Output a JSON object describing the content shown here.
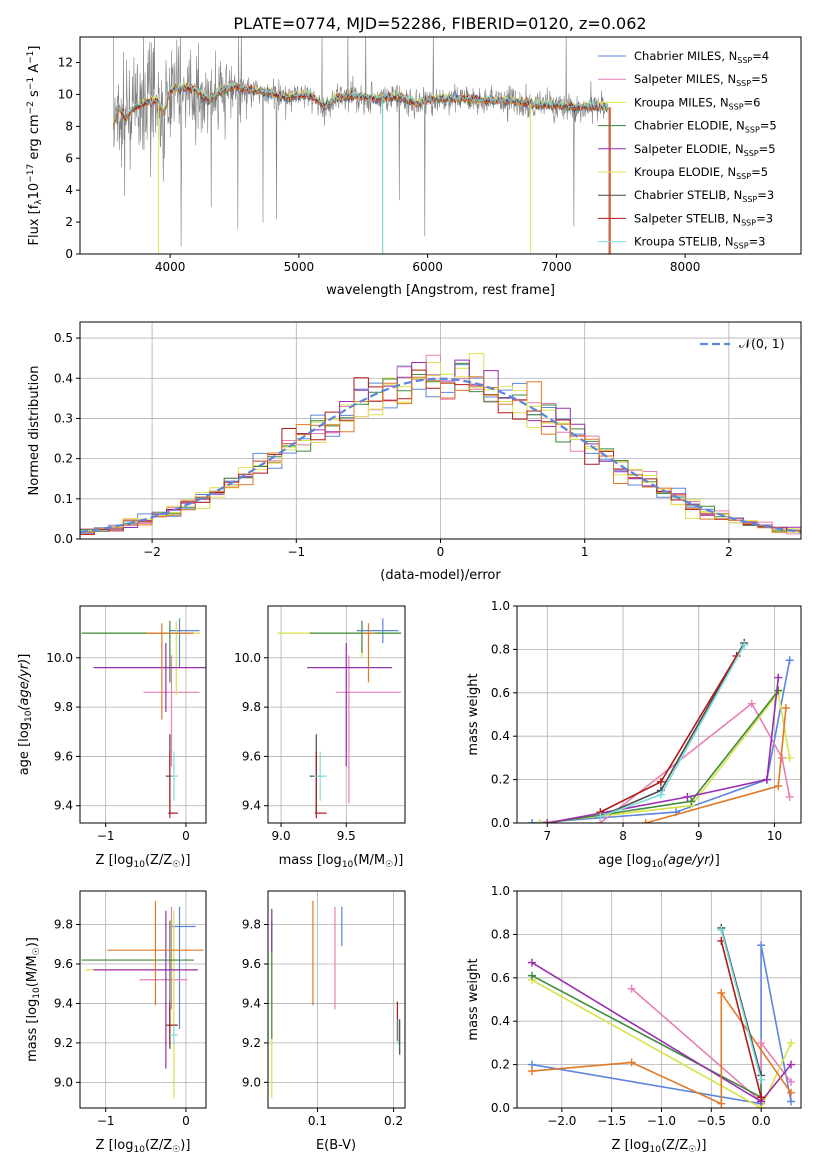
{
  "figure": {
    "title": "PLATE=0774, MJD=52286, FIBERID=0120, z=0.062"
  },
  "colors": {
    "chabrier_miles": "#5b86dc",
    "salpeter_miles": "#e87fb8",
    "kroupa_miles": "#d8e24a",
    "chabrier_elodie": "#3d8a3d",
    "salpeter_elodie": "#9a2eb0",
    "kroupa_elodie": "#e2e25a",
    "chabrier_stelib": "#4a4a4a",
    "salpeter_stelib": "#b01a1a",
    "kroupa_stelib": "#7fdcdc",
    "orange": "#e07a28",
    "data": "#808080"
  },
  "chart_data": [
    {
      "id": "spectrum",
      "type": "line",
      "xlabel": "wavelength [Angstrom, rest frame]",
      "ylabel": "Flux [f",
      "xlim": [
        3300,
        8900
      ],
      "ylim": [
        0,
        13.6
      ],
      "xticks": [
        4000,
        5000,
        6000,
        7000,
        8000
      ],
      "yticks": [
        0,
        2,
        4,
        6,
        8,
        10,
        12
      ],
      "legend_position": "upper right",
      "legend": [
        {
          "pre": "Chabrier MILES, N",
          "n": 4,
          "color": "#5b86dc"
        },
        {
          "pre": "Salpeter MILES, N",
          "n": 5,
          "color": "#e87fb8"
        },
        {
          "pre": "Kroupa MILES, N",
          "n": 6,
          "color": "#d8e24a"
        },
        {
          "pre": "Chabrier ELODIE, N",
          "n": 5,
          "color": "#3d8a3d"
        },
        {
          "pre": "Salpeter ELODIE, N",
          "n": 5,
          "color": "#9a2eb0"
        },
        {
          "pre": "Kroupa ELODIE, N",
          "n": 5,
          "color": "#e2e25a"
        },
        {
          "pre": "Chabrier STELIB, N",
          "n": 3,
          "color": "#4a4a4a"
        },
        {
          "pre": "Salpeter STELIB, N",
          "n": 3,
          "color": "#b01a1a"
        },
        {
          "pre": "Kroupa STELIB, N",
          "n": 3,
          "color": "#7fdcdc"
        }
      ],
      "model_points": [
        [
          3560,
          8.0
        ],
        [
          3600,
          9.2
        ],
        [
          3650,
          8.4
        ],
        [
          3700,
          9.0
        ],
        [
          3800,
          9.4
        ],
        [
          3900,
          9.6
        ],
        [
          3950,
          8.8
        ],
        [
          4000,
          10.2
        ],
        [
          4100,
          10.4
        ],
        [
          4200,
          10.3
        ],
        [
          4300,
          9.6
        ],
        [
          4400,
          10.2
        ],
        [
          4500,
          10.5
        ],
        [
          4600,
          10.3
        ],
        [
          4700,
          10.2
        ],
        [
          4800,
          10.0
        ],
        [
          4900,
          9.8
        ],
        [
          5000,
          9.9
        ],
        [
          5100,
          9.9
        ],
        [
          5200,
          9.2
        ],
        [
          5300,
          9.8
        ],
        [
          5400,
          9.9
        ],
        [
          5500,
          9.8
        ],
        [
          5600,
          9.7
        ],
        [
          5700,
          9.8
        ],
        [
          5800,
          9.8
        ],
        [
          5900,
          9.4
        ],
        [
          6000,
          9.6
        ],
        [
          6100,
          9.7
        ],
        [
          6200,
          9.7
        ],
        [
          6300,
          9.7
        ],
        [
          6400,
          9.6
        ],
        [
          6500,
          9.6
        ],
        [
          6600,
          9.6
        ],
        [
          6700,
          9.5
        ],
        [
          6800,
          9.4
        ],
        [
          6900,
          9.3
        ],
        [
          7000,
          9.3
        ],
        [
          7100,
          9.2
        ],
        [
          7200,
          9.2
        ],
        [
          7300,
          9.2
        ],
        [
          7400,
          9.2
        ]
      ],
      "spikes_to_zero": [
        [
          5650,
          "#4a4a4a"
        ],
        [
          5650,
          "#7fdcdc"
        ],
        [
          3910,
          "#e2e25a"
        ],
        [
          6800,
          "#e2e25a"
        ],
        [
          7420,
          "#e07a28"
        ],
        [
          7410,
          "#b01a1a"
        ]
      ]
    },
    {
      "id": "residuals",
      "type": "line",
      "xlabel": "(data-model)/error",
      "ylabel": "Normed distribution",
      "xlim": [
        -2.5,
        2.5
      ],
      "ylim": [
        0,
        0.54
      ],
      "xticks": [
        -2,
        -1,
        0,
        1,
        2
      ],
      "yticks": [
        0.0,
        0.1,
        0.2,
        0.3,
        0.4,
        0.5
      ],
      "legend": "𝒩(0, 1)",
      "legend_position": "upper right",
      "bin_width": 0.1,
      "bin_start": -2.5
    },
    {
      "id": "age_vs_Z",
      "type": "scatter",
      "xlabel": "Z [log",
      "ylabel": "age  [log",
      "xlim": [
        -1.32,
        0.25
      ],
      "ylim": [
        9.33,
        10.21
      ],
      "xticks": [
        -1,
        0
      ],
      "yticks": [
        9.4,
        9.6,
        9.8,
        10.0
      ],
      "points": [
        {
          "x": -0.08,
          "y": 10.11,
          "xerr": [
            0.12,
            0.25
          ],
          "yerr": [
            0.15,
            0.05
          ],
          "color": "#5b86dc"
        },
        {
          "x": -0.18,
          "y": 9.86,
          "xerr": [
            0.35,
            0.35
          ],
          "yerr": [
            0.3,
            0.15
          ],
          "color": "#e87fb8"
        },
        {
          "x": -0.12,
          "y": 10.1,
          "xerr": [
            1.1,
            0.3
          ],
          "yerr": [
            0.25,
            0.05
          ],
          "color": "#d8e24a"
        },
        {
          "x": -0.2,
          "y": 10.1,
          "xerr": [
            1.1,
            0.25
          ],
          "yerr": [
            0.2,
            0.05
          ],
          "color": "#3d8a3d"
        },
        {
          "x": -0.25,
          "y": 9.96,
          "xerr": [
            0.9,
            0.75
          ],
          "yerr": [
            0.18,
            0.1
          ],
          "color": "#9a2eb0"
        },
        {
          "x": -0.3,
          "y": 10.1,
          "xerr": [
            0.2,
            0.4
          ],
          "yerr": [
            0.35,
            0.04
          ],
          "color": "#e07a28"
        },
        {
          "x": -0.2,
          "y": 9.52,
          "xerr": [
            0.05,
            0.05
          ],
          "yerr": [
            0.15,
            0.17
          ],
          "color": "#4a4a4a"
        },
        {
          "x": -0.2,
          "y": 9.37,
          "xerr": [
            0.02,
            0.1
          ],
          "yerr": [
            0.02,
            0.25
          ],
          "color": "#b01a1a"
        },
        {
          "x": -0.15,
          "y": 9.52,
          "xerr": [
            0.04,
            0.05
          ],
          "yerr": [
            0.1,
            0.1
          ],
          "color": "#7fdcdc"
        }
      ]
    },
    {
      "id": "age_vs_mass",
      "type": "scatter",
      "xlabel": "mass [log",
      "ylabel": "",
      "xlim": [
        8.9,
        9.95
      ],
      "ylim": [
        9.33,
        10.21
      ],
      "xticks": [
        9.0,
        9.5
      ],
      "yticks": [
        9.4,
        9.6,
        9.8,
        10.0
      ],
      "points": [
        {
          "x": 9.78,
          "y": 10.11,
          "xerr": [
            0.2,
            0.12
          ],
          "yerr": [
            0.05,
            0.05
          ],
          "color": "#5b86dc"
        },
        {
          "x": 9.52,
          "y": 9.86,
          "xerr": [
            0.1,
            0.4
          ],
          "yerr": [
            0.45,
            0.15
          ],
          "color": "#e87fb8"
        },
        {
          "x": 9.62,
          "y": 10.1,
          "xerr": [
            0.65,
            0.3
          ],
          "yerr": [
            0.1,
            0.05
          ],
          "color": "#d8e24a"
        },
        {
          "x": 9.62,
          "y": 10.1,
          "xerr": [
            0.4,
            0.3
          ],
          "yerr": [
            0.08,
            0.05
          ],
          "color": "#3d8a3d"
        },
        {
          "x": 9.5,
          "y": 9.96,
          "xerr": [
            0.3,
            0.35
          ],
          "yerr": [
            0.4,
            0.1
          ],
          "color": "#9a2eb0"
        },
        {
          "x": 9.67,
          "y": 10.1,
          "xerr": [
            0.05,
            0.05
          ],
          "yerr": [
            0.2,
            0.04
          ],
          "color": "#e07a28"
        },
        {
          "x": 9.27,
          "y": 9.52,
          "xerr": [
            0.05,
            0.05
          ],
          "yerr": [
            0.15,
            0.17
          ],
          "color": "#4a4a4a"
        },
        {
          "x": 9.27,
          "y": 9.37,
          "xerr": [
            0.01,
            0.08
          ],
          "yerr": [
            0.02,
            0.25
          ],
          "color": "#b01a1a"
        },
        {
          "x": 9.3,
          "y": 9.52,
          "xerr": [
            0.05,
            0.05
          ],
          "yerr": [
            0.1,
            0.1
          ],
          "color": "#7fdcdc"
        }
      ]
    },
    {
      "id": "massweight_vs_age",
      "type": "line",
      "xlabel": "age  [log",
      "ylabel": "mass weight",
      "xlim": [
        6.6,
        10.35
      ],
      "ylim": [
        0,
        1.0
      ],
      "xticks": [
        7,
        8,
        9,
        10
      ],
      "yticks": [
        0.0,
        0.2,
        0.4,
        0.6,
        0.8,
        1.0
      ],
      "series": [
        {
          "color": "#5b86dc",
          "x": [
            6.8,
            8.7,
            9.9,
            10.2
          ],
          "y": [
            0.0,
            0.05,
            0.2,
            0.75
          ]
        },
        {
          "color": "#e87fb8",
          "x": [
            7.7,
            9.7,
            10.1,
            10.2
          ],
          "y": [
            0.0,
            0.55,
            0.3,
            0.12
          ]
        },
        {
          "color": "#d8e24a",
          "x": [
            6.9,
            8.9,
            10.05,
            10.2
          ],
          "y": [
            0.0,
            0.08,
            0.6,
            0.3
          ]
        },
        {
          "color": "#3d8a3d",
          "x": [
            7.0,
            8.9,
            10.05
          ],
          "y": [
            0.0,
            0.1,
            0.61
          ]
        },
        {
          "color": "#9a2eb0",
          "x": [
            7.0,
            8.85,
            9.9,
            10.05
          ],
          "y": [
            0.0,
            0.12,
            0.2,
            0.67
          ]
        },
        {
          "color": "#e07a28",
          "x": [
            8.3,
            10.05,
            10.15
          ],
          "y": [
            0.0,
            0.17,
            0.53
          ]
        },
        {
          "color": "#4a4a4a",
          "x": [
            7.7,
            8.5,
            9.6
          ],
          "y": [
            0.03,
            0.15,
            0.83
          ]
        },
        {
          "color": "#b01a1a",
          "x": [
            7.7,
            8.5,
            9.5
          ],
          "y": [
            0.05,
            0.19,
            0.77
          ]
        },
        {
          "color": "#7fdcdc",
          "x": [
            7.7,
            8.5,
            9.6
          ],
          "y": [
            0.03,
            0.13,
            0.82
          ]
        }
      ]
    },
    {
      "id": "mass_vs_Z",
      "type": "scatter",
      "xlabel": "Z [log",
      "ylabel": "mass [log",
      "xlim": [
        -1.32,
        0.25
      ],
      "ylim": [
        8.87,
        9.97
      ],
      "xticks": [
        -1,
        0
      ],
      "yticks": [
        9.0,
        9.2,
        9.4,
        9.6,
        9.8
      ],
      "points": [
        {
          "x": -0.08,
          "y": 9.79,
          "xerr": [
            0.1,
            0.2
          ],
          "yerr": [
            0.52,
            0.1
          ],
          "color": "#5b86dc"
        },
        {
          "x": -0.18,
          "y": 9.52,
          "xerr": [
            0.4,
            0.2
          ],
          "yerr": [
            0.15,
            0.37
          ],
          "color": "#e87fb8"
        },
        {
          "x": -0.15,
          "y": 9.57,
          "xerr": [
            1.1,
            0.3
          ],
          "yerr": [
            0.65,
            0.3
          ],
          "color": "#d8e24a"
        },
        {
          "x": -0.2,
          "y": 9.62,
          "xerr": [
            1.1,
            0.3
          ],
          "yerr": [
            0.4,
            0.2
          ],
          "color": "#3d8a3d"
        },
        {
          "x": -0.25,
          "y": 9.57,
          "xerr": [
            0.9,
            0.4
          ],
          "yerr": [
            0.5,
            0.3
          ],
          "color": "#9a2eb0"
        },
        {
          "x": -0.38,
          "y": 9.67,
          "xerr": [
            0.6,
            0.6
          ],
          "yerr": [
            0.28,
            0.25
          ],
          "color": "#e07a28"
        },
        {
          "x": -0.2,
          "y": 9.29,
          "xerr": [
            0.05,
            0.08
          ],
          "yerr": [
            0.12,
            0.12
          ],
          "color": "#4a4a4a"
        },
        {
          "x": -0.2,
          "y": 9.29,
          "xerr": [
            0.02,
            0.1
          ],
          "yerr": [
            0.1,
            0.1
          ],
          "color": "#b01a1a"
        },
        {
          "x": -0.15,
          "y": 9.24,
          "xerr": [
            0.05,
            0.05
          ],
          "yerr": [
            0.05,
            0.05
          ],
          "color": "#7fdcdc"
        }
      ]
    },
    {
      "id": "mass_vs_ebv",
      "type": "scatter",
      "xlabel": "E(B-V)",
      "ylabel": "",
      "xlim": [
        0.035,
        0.215
      ],
      "ylim": [
        8.87,
        9.97
      ],
      "xticks": [
        0.1,
        0.2
      ],
      "yticks": [
        9.0,
        9.2,
        9.4,
        9.6,
        9.8
      ],
      "points": [
        {
          "x": 0.132,
          "y": 9.79,
          "xerr": [
            0,
            0
          ],
          "yerr": [
            0.1,
            0.1
          ],
          "color": "#5b86dc"
        },
        {
          "x": 0.123,
          "y": 9.52,
          "xerr": [
            0,
            0
          ],
          "yerr": [
            0.15,
            0.37
          ],
          "color": "#e87fb8"
        },
        {
          "x": 0.04,
          "y": 9.57,
          "xerr": [
            0,
            0
          ],
          "yerr": [
            0.65,
            0.3
          ],
          "color": "#d8e24a"
        },
        {
          "x": 0.04,
          "y": 9.62,
          "xerr": [
            0,
            0
          ],
          "yerr": [
            0.4,
            0.2
          ],
          "color": "#3d8a3d"
        },
        {
          "x": 0.04,
          "y": 9.76,
          "xerr": [
            0,
            0
          ],
          "yerr": [
            0.1,
            0.12
          ],
          "color": "#9a2eb0"
        },
        {
          "x": 0.094,
          "y": 9.67,
          "xerr": [
            0,
            0
          ],
          "yerr": [
            0.28,
            0.25
          ],
          "color": "#e07a28"
        },
        {
          "x": 0.208,
          "y": 9.24,
          "xerr": [
            0,
            0
          ],
          "yerr": [
            0.1,
            0.08
          ],
          "color": "#4a4a4a"
        },
        {
          "x": 0.205,
          "y": 9.31,
          "xerr": [
            0,
            0
          ],
          "yerr": [
            0.1,
            0.1
          ],
          "color": "#b01a1a"
        },
        {
          "x": 0.206,
          "y": 9.24,
          "xerr": [
            0,
            0
          ],
          "yerr": [
            0.05,
            0.08
          ],
          "color": "#7fdcdc"
        }
      ]
    },
    {
      "id": "massweight_vs_Z",
      "type": "line",
      "xlabel": "Z [log",
      "ylabel": "mass weight",
      "xlim": [
        -2.45,
        0.4
      ],
      "ylim": [
        0,
        1.0
      ],
      "xticks": [
        -2.0,
        -1.5,
        -1.0,
        -0.5,
        0.0
      ],
      "yticks": [
        0.0,
        0.2,
        0.4,
        0.6,
        0.8,
        1.0
      ],
      "series": [
        {
          "color": "#5b86dc",
          "x": [
            -2.3,
            0.0,
            0.0,
            0.3
          ],
          "y": [
            0.2,
            0.02,
            0.75,
            0.03
          ]
        },
        {
          "color": "#e87fb8",
          "x": [
            -1.3,
            0.0,
            0.0,
            0.3
          ],
          "y": [
            0.55,
            0.03,
            0.3,
            0.12
          ]
        },
        {
          "color": "#d8e24a",
          "x": [
            -2.3,
            0.0,
            0.3
          ],
          "y": [
            0.59,
            0.0,
            0.3
          ]
        },
        {
          "color": "#3d8a3d",
          "x": [
            -2.3,
            0.0,
            0.0
          ],
          "y": [
            0.61,
            0.05,
            0.13
          ]
        },
        {
          "color": "#9a2eb0",
          "x": [
            -2.3,
            0.0,
            0.3
          ],
          "y": [
            0.67,
            0.03,
            0.2
          ]
        },
        {
          "color": "#e07a28",
          "x": [
            -2.3,
            -1.3,
            -0.4,
            -0.4,
            0.3
          ],
          "y": [
            0.17,
            0.21,
            0.02,
            0.53,
            0.07
          ]
        },
        {
          "color": "#4a4a4a",
          "x": [
            -0.4,
            0.0
          ],
          "y": [
            0.83,
            0.15
          ]
        },
        {
          "color": "#b01a1a",
          "x": [
            -0.4,
            0.0
          ],
          "y": [
            0.77,
            0.05
          ]
        },
        {
          "color": "#7fdcdc",
          "x": [
            -0.4,
            0.0
          ],
          "y": [
            0.82,
            0.13
          ]
        }
      ]
    }
  ]
}
